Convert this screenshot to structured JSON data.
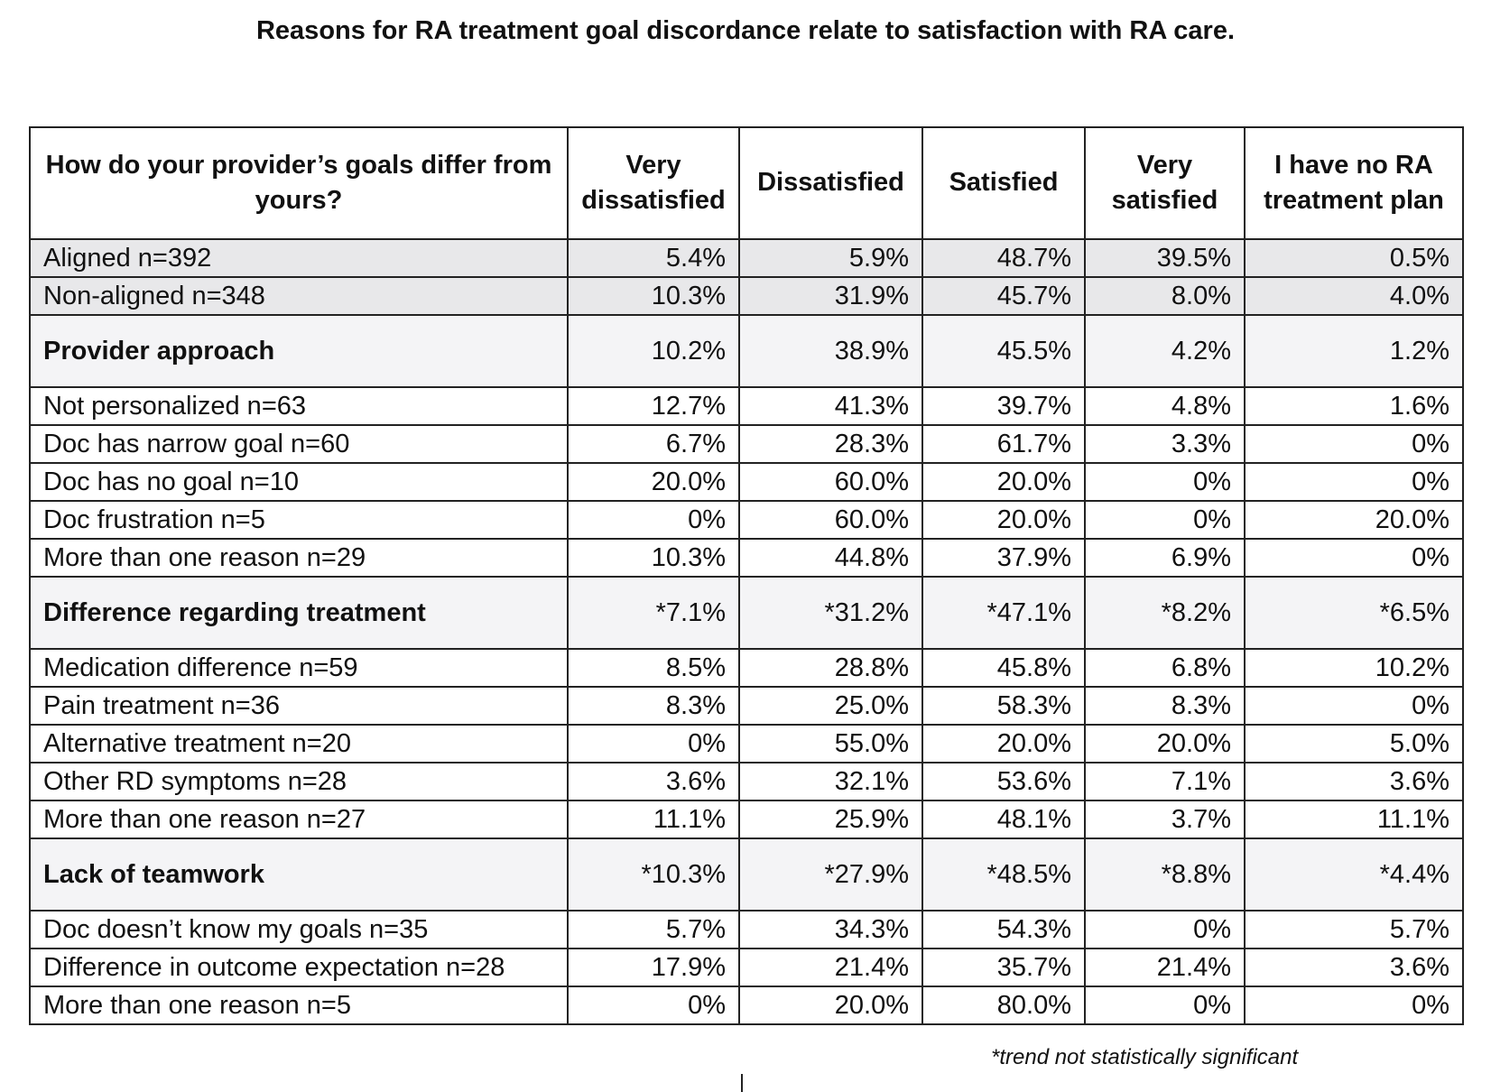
{
  "title": "Reasons for RA treatment goal discordance relate to satisfaction with RA care.",
  "table": {
    "headers": [
      "How do your provider’s goals differ from yours?",
      "Very dissatisfied",
      "Dissatisfied",
      "Satisfied",
      "Very satisfied",
      "I have no RA treatment plan"
    ],
    "rows": [
      {
        "type": "top",
        "label": "Aligned n=392",
        "values": [
          "5.4%",
          "5.9%",
          "48.7%",
          "39.5%",
          "0.5%"
        ]
      },
      {
        "type": "top",
        "label": "Non-aligned n=348",
        "values": [
          "10.3%",
          "31.9%",
          "45.7%",
          "8.0%",
          "4.0%"
        ]
      },
      {
        "type": "group",
        "label": "Provider approach",
        "values": [
          "10.2%",
          "38.9%",
          "45.5%",
          "4.2%",
          "1.2%"
        ]
      },
      {
        "type": "sub",
        "label": "Not personalized n=63",
        "values": [
          "12.7%",
          "41.3%",
          "39.7%",
          "4.8%",
          "1.6%"
        ]
      },
      {
        "type": "sub",
        "label": "Doc has narrow goal n=60",
        "values": [
          "6.7%",
          "28.3%",
          "61.7%",
          "3.3%",
          "0%"
        ]
      },
      {
        "type": "sub",
        "label": "Doc has no goal n=10",
        "values": [
          "20.0%",
          "60.0%",
          "20.0%",
          "0%",
          "0%"
        ]
      },
      {
        "type": "sub",
        "label": "Doc frustration n=5",
        "values": [
          "0%",
          "60.0%",
          "20.0%",
          "0%",
          "20.0%"
        ]
      },
      {
        "type": "sub",
        "label": "More than one reason n=29",
        "values": [
          "10.3%",
          "44.8%",
          "37.9%",
          "6.9%",
          "0%"
        ]
      },
      {
        "type": "group",
        "label": "Difference regarding treatment",
        "values": [
          "*7.1%",
          "*31.2%",
          "*47.1%",
          "*8.2%",
          "*6.5%"
        ]
      },
      {
        "type": "sub",
        "label": "Medication difference n=59",
        "values": [
          "8.5%",
          "28.8%",
          "45.8%",
          "6.8%",
          "10.2%"
        ]
      },
      {
        "type": "sub",
        "label": "Pain treatment n=36",
        "values": [
          "8.3%",
          "25.0%",
          "58.3%",
          "8.3%",
          "0%"
        ]
      },
      {
        "type": "sub",
        "label": "Alternative treatment n=20",
        "values": [
          "0%",
          "55.0%",
          "20.0%",
          "20.0%",
          "5.0%"
        ]
      },
      {
        "type": "sub",
        "label": "Other RD symptoms n=28",
        "values": [
          "3.6%",
          "32.1%",
          "53.6%",
          "7.1%",
          "3.6%"
        ]
      },
      {
        "type": "sub",
        "label": "More than one reason n=27",
        "values": [
          "11.1%",
          "25.9%",
          "48.1%",
          "3.7%",
          "11.1%"
        ]
      },
      {
        "type": "group",
        "label": "Lack of teamwork",
        "values": [
          "*10.3%",
          "*27.9%",
          "*48.5%",
          "*8.8%",
          "*4.4%"
        ]
      },
      {
        "type": "sub",
        "label": "Doc doesn’t know my goals n=35",
        "values": [
          "5.7%",
          "34.3%",
          "54.3%",
          "0%",
          "5.7%"
        ]
      },
      {
        "type": "sub",
        "label": "Difference in outcome expectation n=28",
        "values": [
          "17.9%",
          "21.4%",
          "35.7%",
          "21.4%",
          "3.6%"
        ]
      },
      {
        "type": "sub",
        "label": "More than one reason n=5",
        "values": [
          "0%",
          "20.0%",
          "80.0%",
          "0%",
          "0%"
        ]
      }
    ]
  },
  "footnote": "*trend not statistically significant"
}
